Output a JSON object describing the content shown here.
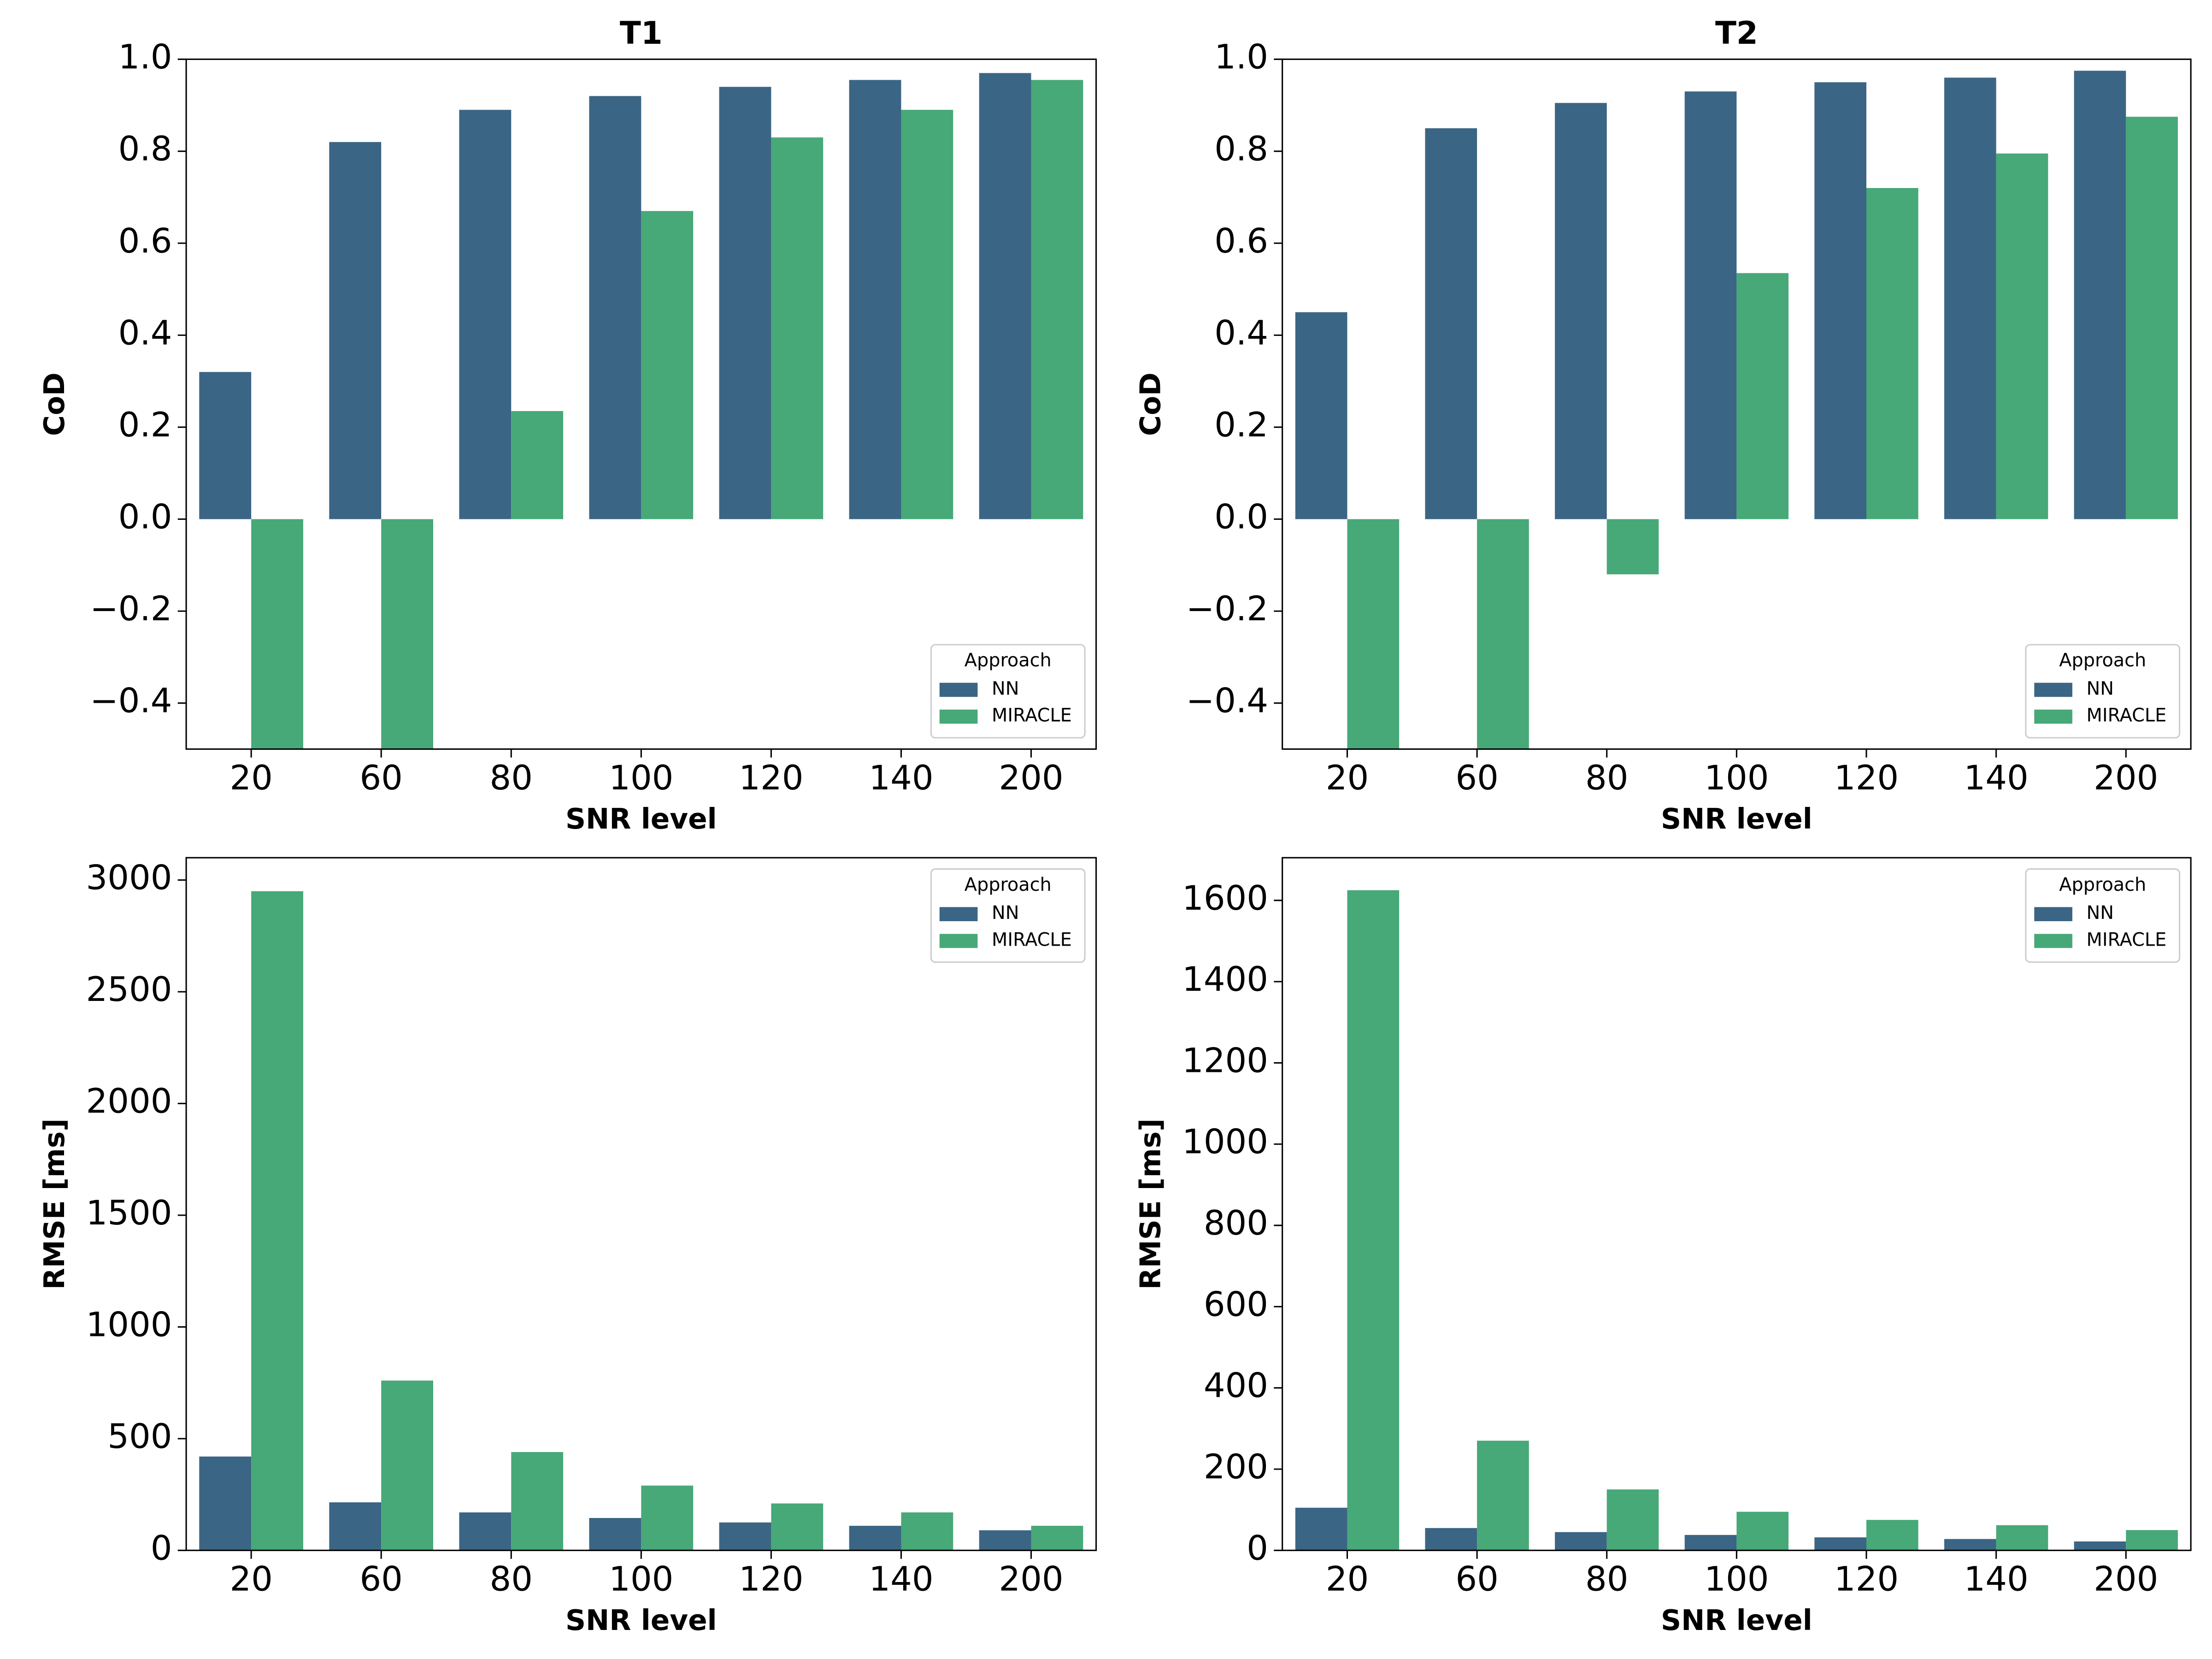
{
  "chart_data": [
    {
      "type": "bar",
      "title": "T1",
      "xlabel": "SNR level",
      "ylabel": "CoD",
      "categories": [
        "20",
        "60",
        "80",
        "100",
        "120",
        "140",
        "200"
      ],
      "series": [
        {
          "name": "NN",
          "color": "#3b6584",
          "values": [
            0.32,
            0.82,
            0.89,
            0.92,
            0.94,
            0.955,
            0.97
          ]
        },
        {
          "name": "MIRACLE",
          "color": "#47a878",
          "values": [
            -0.5,
            -0.5,
            0.235,
            0.67,
            0.83,
            0.89,
            0.955
          ]
        }
      ],
      "ylim": [
        -0.5,
        1.0
      ],
      "yticks": [
        {
          "value": -0.4,
          "label": "−0.4"
        },
        {
          "value": -0.2,
          "label": "−0.2"
        },
        {
          "value": 0,
          "label": "0.0"
        },
        0.2,
        0.4,
        0.6,
        0.8,
        {
          "value": 1,
          "label": "1.0"
        }
      ],
      "grid": false,
      "legend_title": "Approach",
      "legend": "lower right"
    },
    {
      "type": "bar",
      "title": "T2",
      "xlabel": "SNR level",
      "ylabel": "CoD",
      "categories": [
        "20",
        "60",
        "80",
        "100",
        "120",
        "140",
        "200"
      ],
      "series": [
        {
          "name": "NN",
          "color": "#3b6584",
          "values": [
            0.45,
            0.85,
            0.905,
            0.93,
            0.95,
            0.96,
            0.975
          ]
        },
        {
          "name": "MIRACLE",
          "color": "#47a878",
          "values": [
            -0.5,
            -0.5,
            -0.12,
            0.535,
            0.72,
            0.795,
            0.875
          ]
        }
      ],
      "ylim": [
        -0.5,
        1.0
      ],
      "yticks": [
        {
          "value": -0.4,
          "label": "−0.4"
        },
        {
          "value": -0.2,
          "label": "−0.2"
        },
        {
          "value": 0,
          "label": "0.0"
        },
        0.2,
        0.4,
        0.6,
        0.8,
        {
          "value": 1,
          "label": "1.0"
        }
      ],
      "grid": false,
      "legend_title": "Approach",
      "legend": "lower right"
    },
    {
      "type": "bar",
      "xlabel": "SNR level",
      "ylabel": "RMSE [ms]",
      "categories": [
        "20",
        "60",
        "80",
        "100",
        "120",
        "140",
        "200"
      ],
      "series": [
        {
          "name": "NN",
          "color": "#3b6584",
          "values": [
            420,
            215,
            170,
            145,
            125,
            110,
            90
          ]
        },
        {
          "name": "MIRACLE",
          "color": "#47a878",
          "values": [
            2950,
            760,
            440,
            290,
            210,
            170,
            110
          ]
        }
      ],
      "ylim": [
        0,
        3100
      ],
      "yticks": [
        0,
        500,
        1000,
        1500,
        2000,
        2500,
        3000
      ],
      "grid": false,
      "legend_title": "Approach",
      "legend": "upper right"
    },
    {
      "type": "bar",
      "xlabel": "SNR level",
      "ylabel": "RMSE [ms]",
      "categories": [
        "20",
        "60",
        "80",
        "100",
        "120",
        "140",
        "200"
      ],
      "series": [
        {
          "name": "NN",
          "color": "#3b6584",
          "values": [
            105,
            55,
            45,
            38,
            32,
            28,
            22
          ]
        },
        {
          "name": "MIRACLE",
          "color": "#47a878",
          "values": [
            1625,
            270,
            150,
            95,
            75,
            62,
            50
          ]
        }
      ],
      "ylim": [
        0,
        1705
      ],
      "yticks": [
        0,
        200,
        400,
        600,
        800,
        1000,
        1200,
        1400,
        1600
      ],
      "grid": false,
      "legend_title": "Approach",
      "legend": "upper right"
    }
  ]
}
